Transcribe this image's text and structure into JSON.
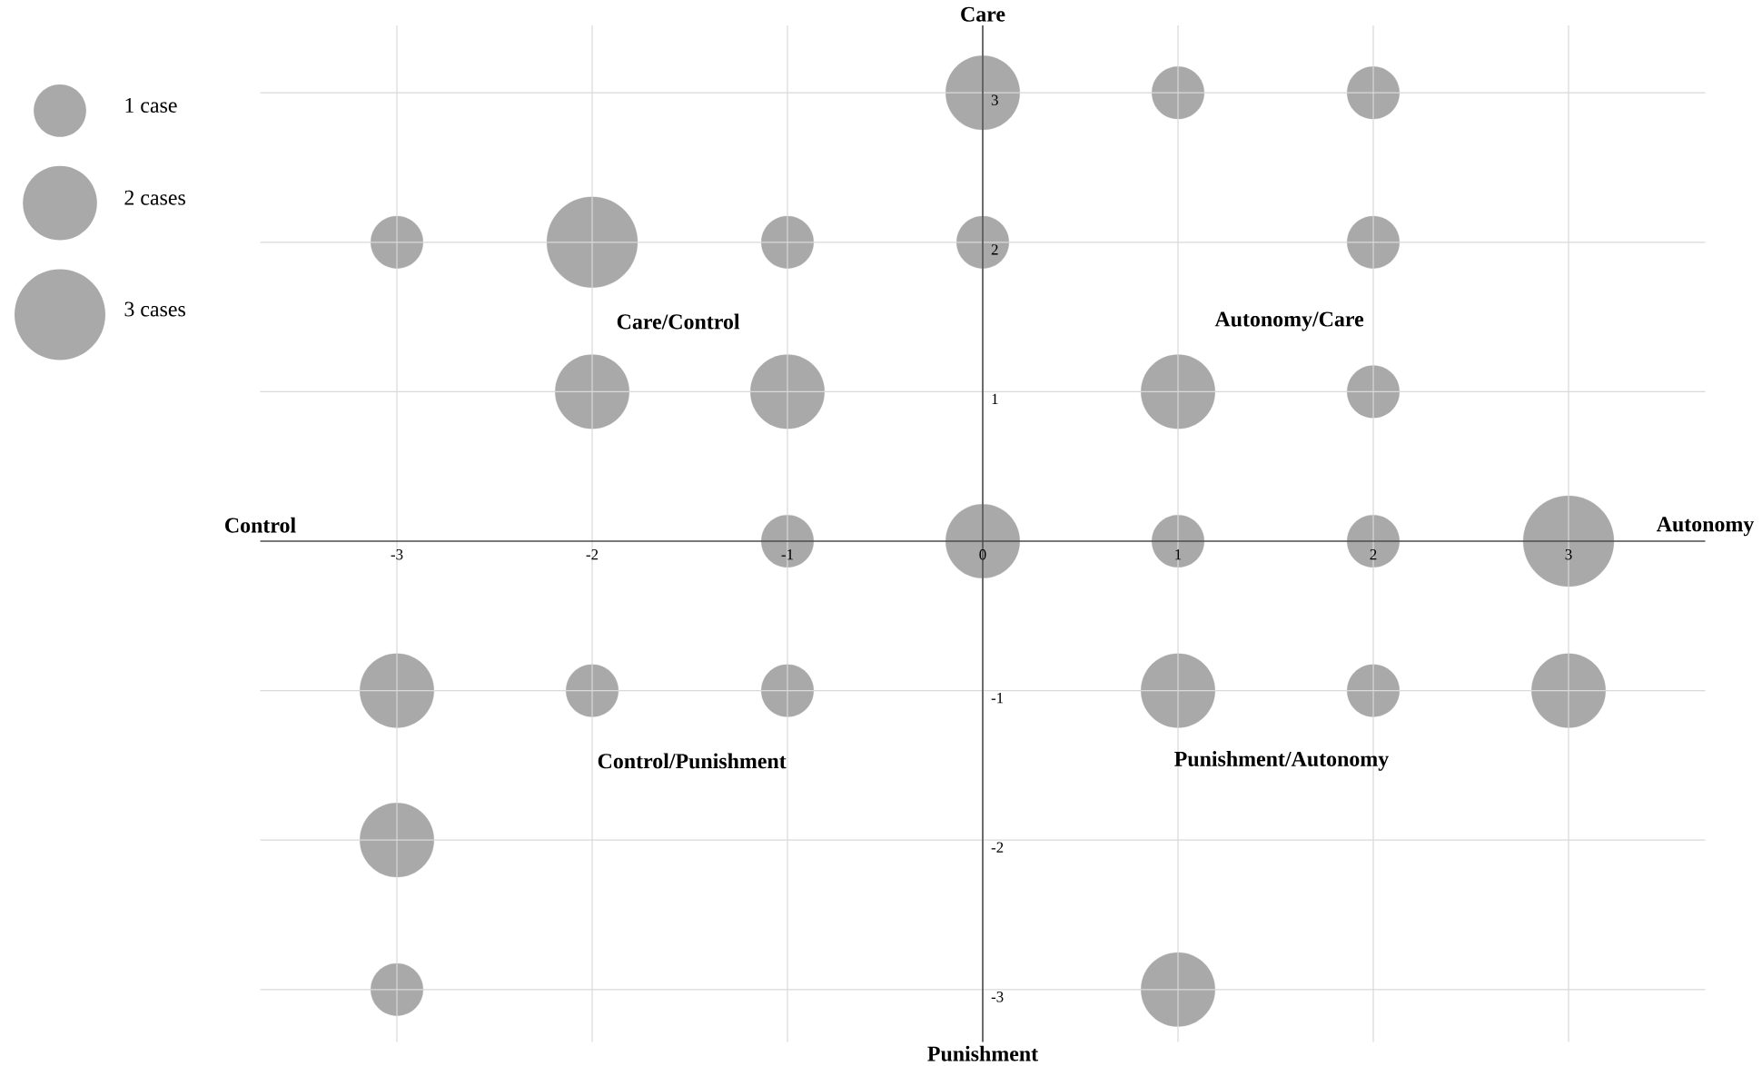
{
  "chart_data": {
    "type": "bubble",
    "xlabel": "Autonomy",
    "ylabel": "Care",
    "annotations": [
      "Control",
      "Punishment",
      "Care/Control",
      "Autonomy/Care",
      "Control/Punishment",
      "Punishment/Autonomy"
    ],
    "series": [
      {
        "color": "#a9a9a9",
        "x": [
          0,
          1,
          2,
          -3,
          -2,
          -1,
          0,
          2,
          -2,
          -1,
          1,
          2,
          -1,
          0,
          1,
          2,
          3,
          -3,
          -2,
          -1,
          1,
          2,
          3,
          -3,
          -3,
          1
        ],
        "values": [
          3,
          3,
          3,
          2,
          2,
          2,
          2,
          2,
          1,
          1,
          1,
          1,
          0,
          0,
          0,
          0,
          0,
          -1,
          -1,
          -1,
          -1,
          -1,
          -1,
          -2,
          -3,
          -3
        ],
        "sizes": [
          2,
          1,
          1,
          1,
          3,
          1,
          1,
          1,
          2,
          2,
          2,
          1,
          1,
          2,
          1,
          1,
          3,
          2,
          1,
          1,
          2,
          1,
          2,
          2,
          1,
          2
        ]
      }
    ],
    "size_legend": [
      {
        "value": 1,
        "label": "1 case"
      },
      {
        "value": 2,
        "label": "2 cases"
      },
      {
        "value": 3,
        "label": "3 cases"
      }
    ],
    "xlim": [
      -3.7,
      3.7
    ],
    "ylim": [
      -3.35,
      3.45
    ],
    "xticks": [
      -3,
      -2,
      -1,
      0,
      1,
      2,
      3
    ],
    "yticks": [
      -3,
      -2,
      -1,
      1,
      2,
      3
    ],
    "grid": true
  }
}
